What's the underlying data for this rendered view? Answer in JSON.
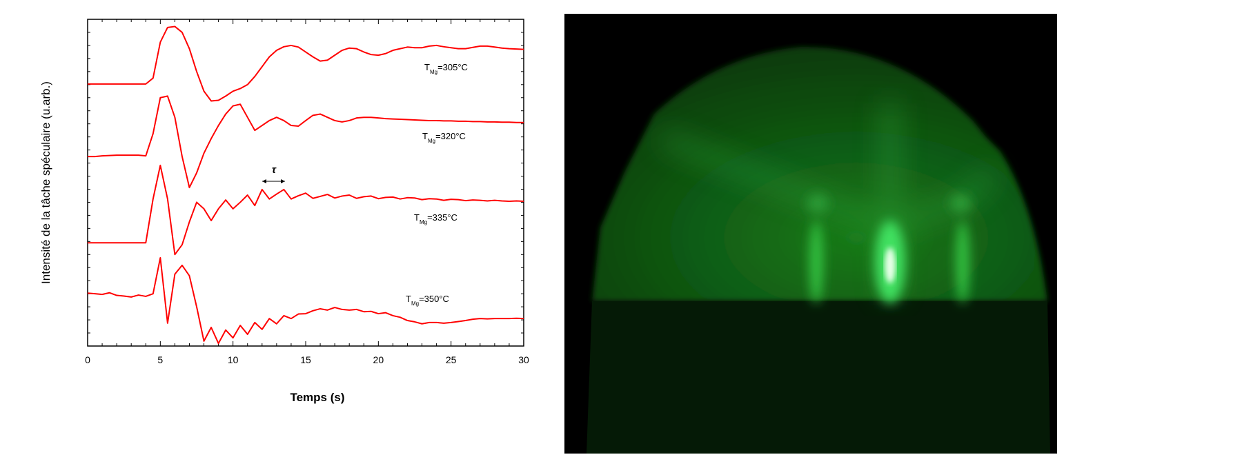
{
  "chart_data": {
    "type": "line",
    "x_label": "Temps (s)",
    "y_label": "Intensité de la tâche spéculaire (u.arb.)",
    "annotation": "τ",
    "xlim": [
      0,
      30
    ],
    "xticks": [
      0,
      5,
      10,
      15,
      20,
      25,
      30
    ],
    "ylim": [
      0,
      100
    ],
    "x": [
      0,
      0.5,
      1,
      1.5,
      2,
      2.5,
      3,
      3.5,
      4,
      4.5,
      5,
      5.5,
      6,
      6.5,
      7,
      7.5,
      8,
      8.5,
      9,
      9.5,
      10,
      10.5,
      11,
      11.5,
      12,
      12.5,
      13,
      13.5,
      14,
      14.5,
      15,
      15.5,
      16,
      16.5,
      17,
      17.5,
      18,
      18.5,
      19,
      19.5,
      20,
      20.5,
      21,
      21.5,
      22,
      22.5,
      23,
      23.5,
      24,
      24.5,
      25,
      25.5,
      26,
      26.5,
      27,
      27.5,
      28,
      28.5,
      29,
      29.5,
      30
    ],
    "series": [
      {
        "name": "T",
        "subscript": "Mg",
        "suffix": "=305°C",
        "color": "#ff0000",
        "values": [
          80.2,
          80.2,
          80.2,
          80.2,
          80.2,
          80.2,
          80.2,
          80.2,
          80.2,
          82,
          93,
          97.5,
          97.8,
          96,
          91,
          84,
          78,
          75,
          75.2,
          76.5,
          78,
          78.8,
          80,
          82.5,
          85.5,
          88.5,
          90.5,
          91.6,
          92,
          91.5,
          90,
          88.5,
          87.2,
          87.5,
          89,
          90.5,
          91.2,
          91,
          90,
          89.2,
          89,
          89.5,
          90.5,
          91,
          91.5,
          91.3,
          91.3,
          91.8,
          92,
          91.6,
          91.3,
          91,
          91,
          91.4,
          91.8,
          91.8,
          91.5,
          91.2,
          91,
          90.9,
          90.8
        ]
      },
      {
        "name": "T",
        "subscript": "Mg",
        "suffix": "=320°C",
        "color": "#ff0000",
        "values": [
          58,
          58,
          58.2,
          58.3,
          58.4,
          58.4,
          58.4,
          58.4,
          58.2,
          65,
          76,
          76.5,
          70,
          58,
          48.5,
          53,
          59,
          63.5,
          67.5,
          71,
          73.5,
          74,
          70,
          66,
          67.5,
          69,
          70,
          69,
          67.5,
          67.3,
          69,
          70.6,
          71,
          70,
          69,
          68.6,
          69,
          69.8,
          70,
          70,
          69.8,
          69.6,
          69.5,
          69.4,
          69.3,
          69.2,
          69.1,
          69,
          69,
          68.9,
          68.9,
          68.8,
          68.8,
          68.7,
          68.7,
          68.6,
          68.6,
          68.5,
          68.5,
          68.4,
          68.4
        ]
      },
      {
        "name": "T",
        "subscript": "Mg",
        "suffix": "=335°C",
        "color": "#ff0000",
        "values": [
          31.6,
          31.6,
          31.6,
          31.6,
          31.6,
          31.6,
          31.6,
          31.6,
          31.6,
          45,
          55.3,
          45,
          28,
          31,
          38,
          44,
          42,
          38.4,
          42,
          44.7,
          42,
          44,
          46.2,
          43,
          47.9,
          45,
          46.5,
          47.9,
          45,
          46,
          46.8,
          45.2,
          45.8,
          46.4,
          45.3,
          45.9,
          46.2,
          45.2,
          45.7,
          45.9,
          45.1,
          45.5,
          45.6,
          45,
          45.4,
          45.3,
          44.8,
          45.1,
          45,
          44.6,
          44.9,
          44.8,
          44.5,
          44.7,
          44.6,
          44.4,
          44.6,
          44.4,
          44.3,
          44.4,
          44.3
        ]
      },
      {
        "name": "T",
        "subscript": "Mg",
        "suffix": "=350°C",
        "color": "#ff0000",
        "values": [
          16.2,
          16,
          15.8,
          16.3,
          15.5,
          15.3,
          15,
          15.6,
          15.2,
          16,
          27,
          7,
          22,
          24.7,
          21.5,
          12,
          1.5,
          5.7,
          0.8,
          4.9,
          2.5,
          6.3,
          3.6,
          7.2,
          5.1,
          8.4,
          6.8,
          9.3,
          8.4,
          9.8,
          9.9,
          10.8,
          11.4,
          11,
          11.8,
          11.2,
          11,
          11.2,
          10.5,
          10.6,
          9.9,
          10.2,
          9.3,
          8.8,
          7.8,
          7.4,
          6.8,
          7.2,
          7.2,
          7,
          7.2,
          7.5,
          7.8,
          8.2,
          8.4,
          8.3,
          8.4,
          8.4,
          8.4,
          8.5,
          8.4
        ]
      }
    ]
  }
}
